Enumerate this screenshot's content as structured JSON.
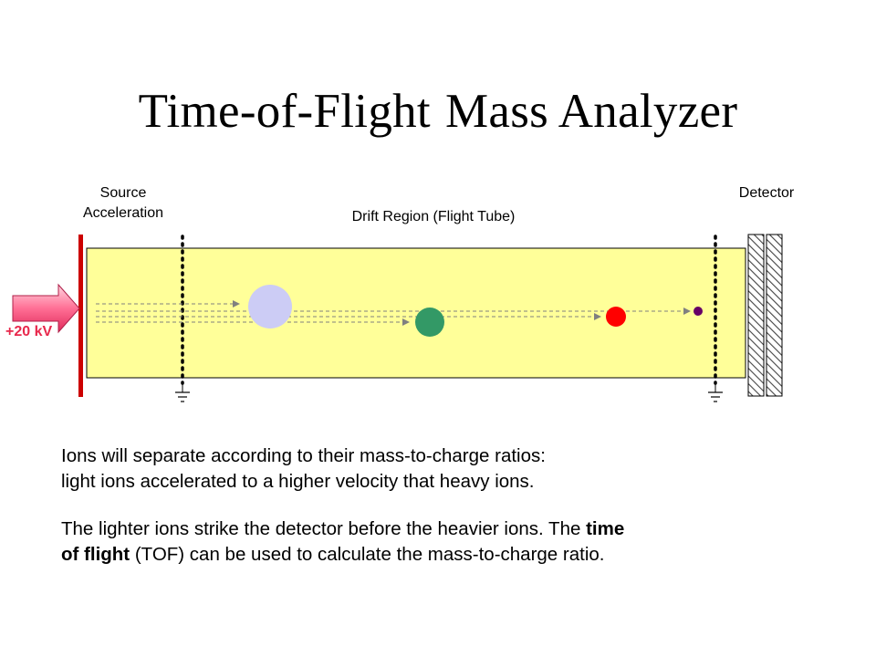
{
  "title": {
    "part1": "Time-of-Flight",
    "part2": "Mass Analyzer"
  },
  "labels": {
    "source_line1": "Source",
    "source_line2": "Acceleration",
    "drift": "Drift Region (Flight Tube)",
    "detector": "Detector",
    "voltage": "+20 kV"
  },
  "colors": {
    "tube": "#ffff99",
    "plate": "#cc0000",
    "arrow": "#ff6699",
    "voltage_text": "#e8284c",
    "ion_heavy": "#ccccf5",
    "ion_medium": "#339966",
    "ion_light": "#ff0000",
    "ion_lightest": "#660066"
  },
  "text": {
    "p1_line1": "Ions will separate according to their mass-to-charge ratios:",
    "p1_line2": "light ions accelerated to a higher velocity that heavy ions.",
    "p2_a": "The lighter ions strike the detector before the heavier ions. The ",
    "p2_bold1": "time",
    "p2_bold2": "of flight",
    "p2_b": " (TOF) can be used to calculate the mass-to-charge ratio."
  }
}
